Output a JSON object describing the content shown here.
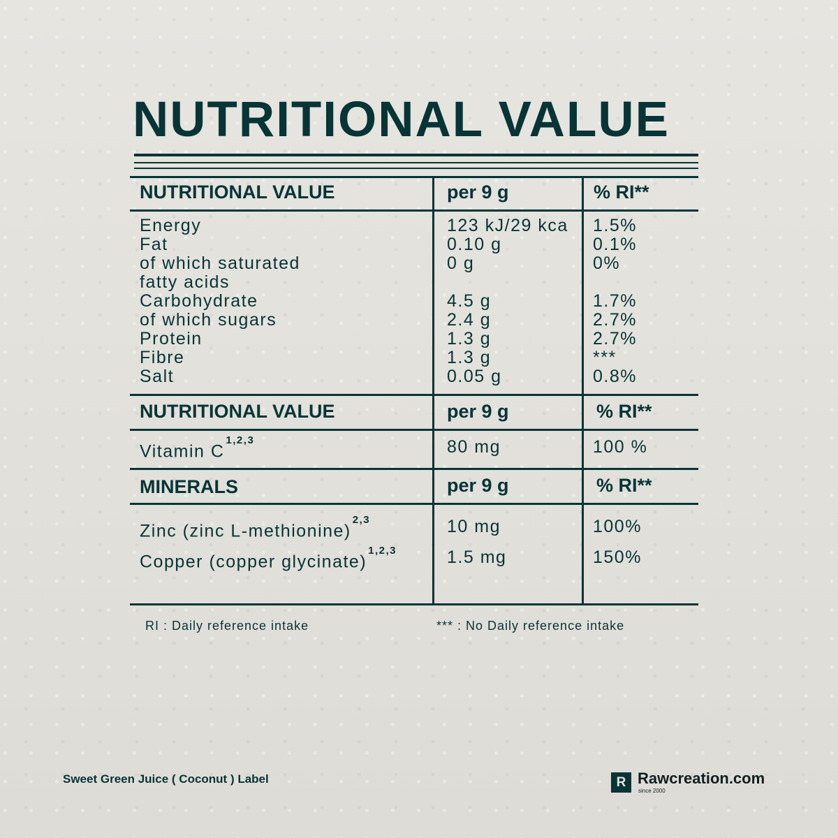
{
  "title": "NUTRITIONAL VALUE",
  "section1": {
    "headers": [
      "NUTRITIONAL VALUE",
      "per 9 g",
      "% RI**"
    ],
    "names": [
      "Energy",
      "Fat",
      "of which saturated",
      "fatty acids",
      "Carbohydrate",
      "of which sugars",
      "Protein",
      "Fibre",
      "Salt"
    ],
    "amounts": [
      "123 kJ/29 kca",
      "0.10 g",
      "0 g",
      "",
      "4.5 g",
      "2.4 g",
      "1.3 g",
      "1.3 g",
      "0.05 g"
    ],
    "ri": [
      "1.5%",
      "0.1%",
      "0%",
      "",
      "1.7%",
      "2.7%",
      "2.7%",
      "***",
      "0.8%"
    ]
  },
  "section2": {
    "headers": [
      "NUTRITIONAL VALUE",
      "per 9 g",
      "% RI**"
    ],
    "name": "Vitamin C",
    "note": "1,2,3",
    "amount": "80 mg",
    "ri": "100 %"
  },
  "section3": {
    "headers": [
      "MINERALS",
      "per 9 g",
      "% RI**"
    ],
    "rows": [
      {
        "name": "Zinc (zinc L-methionine)",
        "note": "2,3",
        "amount": "10 mg",
        "ri": "100%"
      },
      {
        "name": "Copper (copper glycinate)",
        "note": "1,2,3",
        "amount": "1.5 mg",
        "ri": "150%"
      }
    ]
  },
  "footnotes": {
    "ri": "RI : Daily reference intake",
    "no_ri": "*** : No Daily reference intake"
  },
  "product_label": "Sweet Green Juice ( Coconut ) Label",
  "brand": {
    "letter": "R",
    "name": "Rawcreation.com",
    "since": "since 2000"
  },
  "colors": {
    "ink": "#073436",
    "background": "#e4e3de"
  }
}
